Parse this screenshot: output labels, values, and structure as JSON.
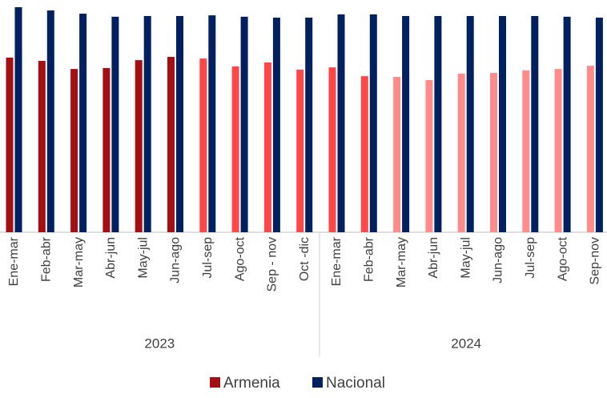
{
  "chart_data": {
    "type": "bar",
    "groups": [
      {
        "name": "2023",
        "categories": [
          "Ene-mar",
          "Feb-abr",
          "Mar-may",
          "Abr-jun",
          "May-jul",
          "Jun-ago",
          "Jul-sep",
          "Ago-oct",
          "Sep - nov",
          "Oct -dic"
        ]
      },
      {
        "name": "2024",
        "categories": [
          "Ene-mar",
          "Feb-abr",
          "Mar-may",
          "Abr-jun",
          "May-jul",
          "Jun-ago",
          "Jul-sep",
          "Ago-oct",
          "Sep-nov"
        ]
      }
    ],
    "series": [
      {
        "name": "Armenia",
        "color": "#a30f12",
        "colors": [
          "#a30f12",
          "#a30f12",
          "#a30f12",
          "#a30f12",
          "#a30f12",
          "#a30f12",
          "#ff4747",
          "#ff4747",
          "#ff4747",
          "#ff4747",
          "#ff4747",
          "#ff4747",
          "#ff8b8b",
          "#ff8b8b",
          "#ff8b8b",
          "#ff8b8b",
          "#ff8b8b",
          "#ff8b8b",
          "#ff8b8b"
        ],
        "values": [
          75.2,
          73.8,
          70.3,
          70.7,
          74.1,
          75.5,
          74.8,
          71.4,
          73.1,
          70.0,
          71.0,
          67.2,
          66.9,
          65.5,
          68.3,
          68.6,
          69.7,
          70.3,
          71.7
        ]
      },
      {
        "name": "Nacional",
        "color": "#002060",
        "values": [
          96.9,
          95.5,
          94.1,
          92.8,
          93.1,
          93.1,
          93.4,
          92.8,
          92.4,
          92.4,
          93.8,
          93.8,
          93.1,
          93.1,
          93.1,
          93.1,
          93.1,
          92.8,
          92.4
        ]
      }
    ],
    "ylim": [
      0,
      100
    ]
  }
}
